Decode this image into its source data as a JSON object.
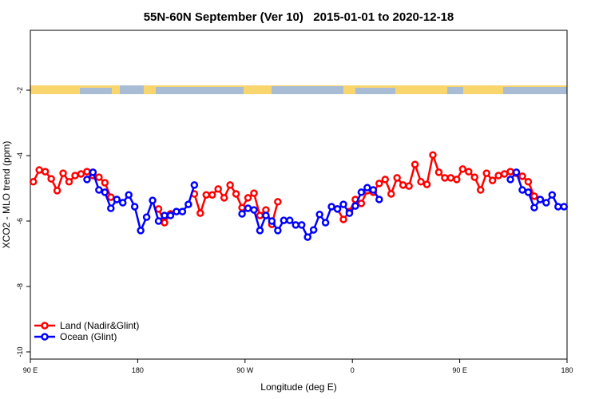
{
  "chart_data": {
    "type": "line",
    "title": "55N-60N September (Ver 10)   2015-01-01 to 2020-12-18",
    "x_label": "Longitude (deg E)",
    "y_label": "XCO2 - MLO trend (ppm)",
    "xlim": [
      90,
      540
    ],
    "xticks": [
      {
        "value": 90,
        "label": "90 E"
      },
      180,
      {
        "value": 270,
        "label": "90 W"
      },
      {
        "value": 360,
        "label": "0"
      },
      {
        "value": 450,
        "label": "90 E"
      },
      {
        "value": 540,
        "label": "180"
      }
    ],
    "ylim": [
      -10.22,
      -0.17
    ],
    "yticks": [
      -2,
      -4,
      -6,
      -8,
      -10
    ],
    "legend": "lower left",
    "x": [
      92.5,
      97.5,
      102.5,
      107.5,
      112.5,
      117.5,
      122.5,
      127.5,
      132.5,
      137.5,
      142.5,
      147.5,
      152.5,
      157.5,
      162.5,
      167.5,
      172.5,
      177.5,
      182.5,
      187.5,
      192.5,
      197.5,
      202.5,
      207.5,
      212.5,
      217.5,
      222.5,
      227.5,
      232.5,
      237.5,
      242.5,
      247.5,
      252.5,
      257.5,
      262.5,
      267.5,
      272.5,
      277.5,
      282.5,
      287.5,
      292.5,
      297.5,
      302.5,
      307.5,
      312.5,
      317.5,
      322.5,
      327.5,
      332.5,
      337.5,
      342.5,
      347.5,
      352.5,
      357.5,
      362.5,
      367.5,
      372.5,
      377.5,
      382.5,
      387.5,
      392.5,
      397.5,
      402.5,
      407.5,
      412.5,
      417.5,
      422.5,
      427.5,
      432.5,
      437.5,
      442.5,
      447.5,
      452.5,
      457.5,
      462.5,
      467.5,
      472.5,
      477.5,
      482.5,
      487.5,
      492.5,
      497.5,
      502.5,
      507.5,
      512.5,
      517.5,
      522.5,
      527.5,
      532.5,
      537.5
    ],
    "series": [
      {
        "name": "Land (Nadir&Glint)",
        "color": "#ff0000",
        "values": [
          -4.8,
          -4.44,
          -4.49,
          -4.71,
          -5.07,
          -4.54,
          -4.8,
          -4.61,
          -4.56,
          -4.49,
          -4.61,
          -4.66,
          -4.83,
          -5.27,
          -5.34,
          null,
          null,
          null,
          null,
          null,
          null,
          -5.63,
          -6.05,
          -5.78,
          null,
          null,
          null,
          -5.17,
          -5.76,
          -5.2,
          -5.2,
          -5.02,
          -5.29,
          -4.9,
          -5.17,
          -5.59,
          -5.29,
          -5.15,
          -5.83,
          -5.66,
          -6.1,
          -5.41,
          null,
          null,
          null,
          null,
          null,
          null,
          null,
          null,
          null,
          -5.63,
          -5.95,
          -5.71,
          -5.34,
          -5.46,
          -5.07,
          -5.12,
          -4.85,
          -4.73,
          -5.17,
          -4.68,
          -4.9,
          -4.93,
          -4.27,
          -4.8,
          -4.88,
          -3.98,
          -4.51,
          -4.68,
          -4.68,
          -4.73,
          -4.41,
          -4.49,
          -4.66,
          -5.05,
          -4.54,
          -4.76,
          -4.61,
          -4.56,
          -4.49,
          -4.54,
          -4.63,
          -4.8,
          -5.24,
          -5.34,
          null,
          null,
          null,
          null
        ]
      },
      {
        "name": "Ocean (Glint)",
        "color": "#0000ff",
        "values": [
          null,
          null,
          null,
          null,
          null,
          null,
          null,
          null,
          null,
          -4.73,
          -4.51,
          -5.05,
          -5.12,
          -5.61,
          -5.34,
          -5.44,
          -5.2,
          -5.56,
          -6.29,
          -5.88,
          -5.37,
          -6.0,
          -5.83,
          -5.83,
          -5.71,
          -5.71,
          -5.49,
          -4.9,
          null,
          null,
          null,
          null,
          null,
          null,
          null,
          -5.78,
          -5.61,
          -5.66,
          -6.29,
          -5.83,
          -6.0,
          -6.29,
          -5.98,
          -5.98,
          -6.12,
          -6.12,
          -6.49,
          -6.27,
          -5.8,
          -6.05,
          -5.56,
          -5.63,
          -5.49,
          -5.76,
          -5.54,
          -5.12,
          -4.98,
          -5.05,
          -5.34,
          null,
          null,
          null,
          null,
          null,
          null,
          null,
          null,
          null,
          null,
          null,
          null,
          null,
          null,
          null,
          null,
          null,
          null,
          null,
          null,
          null,
          -4.73,
          -4.51,
          -5.05,
          -5.12,
          -5.59,
          -5.34,
          -5.44,
          -5.2,
          -5.56,
          -5.56
        ]
      }
    ]
  }
}
